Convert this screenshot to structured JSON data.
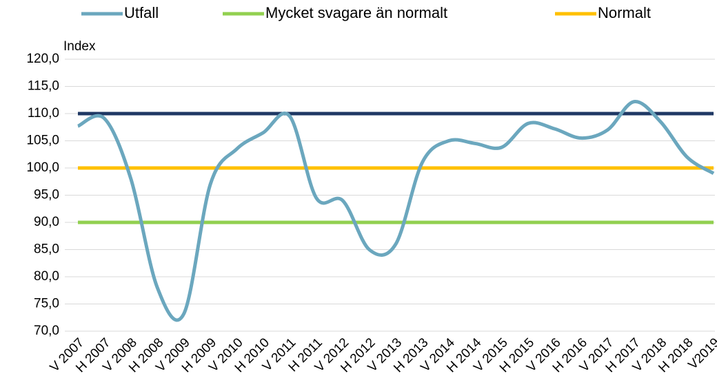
{
  "chart_data": {
    "type": "line",
    "y_label": "Index",
    "categories": [
      "V 2007",
      "H 2007",
      "V 2008",
      "H 2008",
      "V 2009",
      "H 2009",
      "V 2010",
      "H 2010",
      "V 2011",
      "H 2011",
      "V 2012",
      "H 2012",
      "V 2013",
      "H 2013",
      "V 2014",
      "H 2014",
      "V 2015",
      "H 2015",
      "V 2016",
      "H 2016",
      "V 2017",
      "H 2017",
      "V 2018",
      "H 2018",
      "V2019"
    ],
    "series": [
      {
        "color": "#1f3864",
        "values": [
          110,
          110,
          110,
          110,
          110,
          110,
          110,
          110,
          110,
          110,
          110,
          110,
          110,
          110,
          110,
          110,
          110,
          110,
          110,
          110,
          110,
          110,
          110,
          110,
          110
        ]
      },
      {
        "name": "Mycket svagare än normalt",
        "color": "#92d050",
        "values": [
          90,
          90,
          90,
          90,
          90,
          90,
          90,
          90,
          90,
          90,
          90,
          90,
          90,
          90,
          90,
          90,
          90,
          90,
          90,
          90,
          90,
          90,
          90,
          90,
          90
        ]
      },
      {
        "name": "Normalt",
        "color": "#ffc000",
        "values": [
          100,
          100,
          100,
          100,
          100,
          100,
          100,
          100,
          100,
          100,
          100,
          100,
          100,
          100,
          100,
          100,
          100,
          100,
          100,
          100,
          100,
          100,
          100,
          100,
          100
        ]
      },
      {
        "name": "Utfall",
        "color": "#6ba7be",
        "values": [
          107.7,
          109.1,
          98,
          78,
          73.2,
          97,
          103.5,
          106.5,
          109.5,
          94.5,
          94,
          85,
          86,
          101,
          105,
          104.5,
          103.8,
          108.2,
          107.2,
          105.5,
          107,
          112.2,
          108.5,
          102,
          99
        ]
      }
    ],
    "legend": [
      "Utfall",
      "Mycket svagare än normalt",
      "Normalt"
    ],
    "ylim": [
      70,
      120
    ],
    "yticks": [
      {
        "value": 70,
        "label": "70,0"
      },
      {
        "value": 75,
        "label": "75,0"
      },
      {
        "value": 80,
        "label": "80,0"
      },
      {
        "value": 85,
        "label": "85,0"
      },
      {
        "value": 90,
        "label": "90,0"
      },
      {
        "value": 95,
        "label": "95,0"
      },
      {
        "value": 100,
        "label": "100,0"
      },
      {
        "value": 105,
        "label": "105,0"
      },
      {
        "value": 110,
        "label": "110,0"
      },
      {
        "value": 115,
        "label": "115,0"
      },
      {
        "value": 120,
        "label": "120,0"
      }
    ],
    "grid": true
  }
}
